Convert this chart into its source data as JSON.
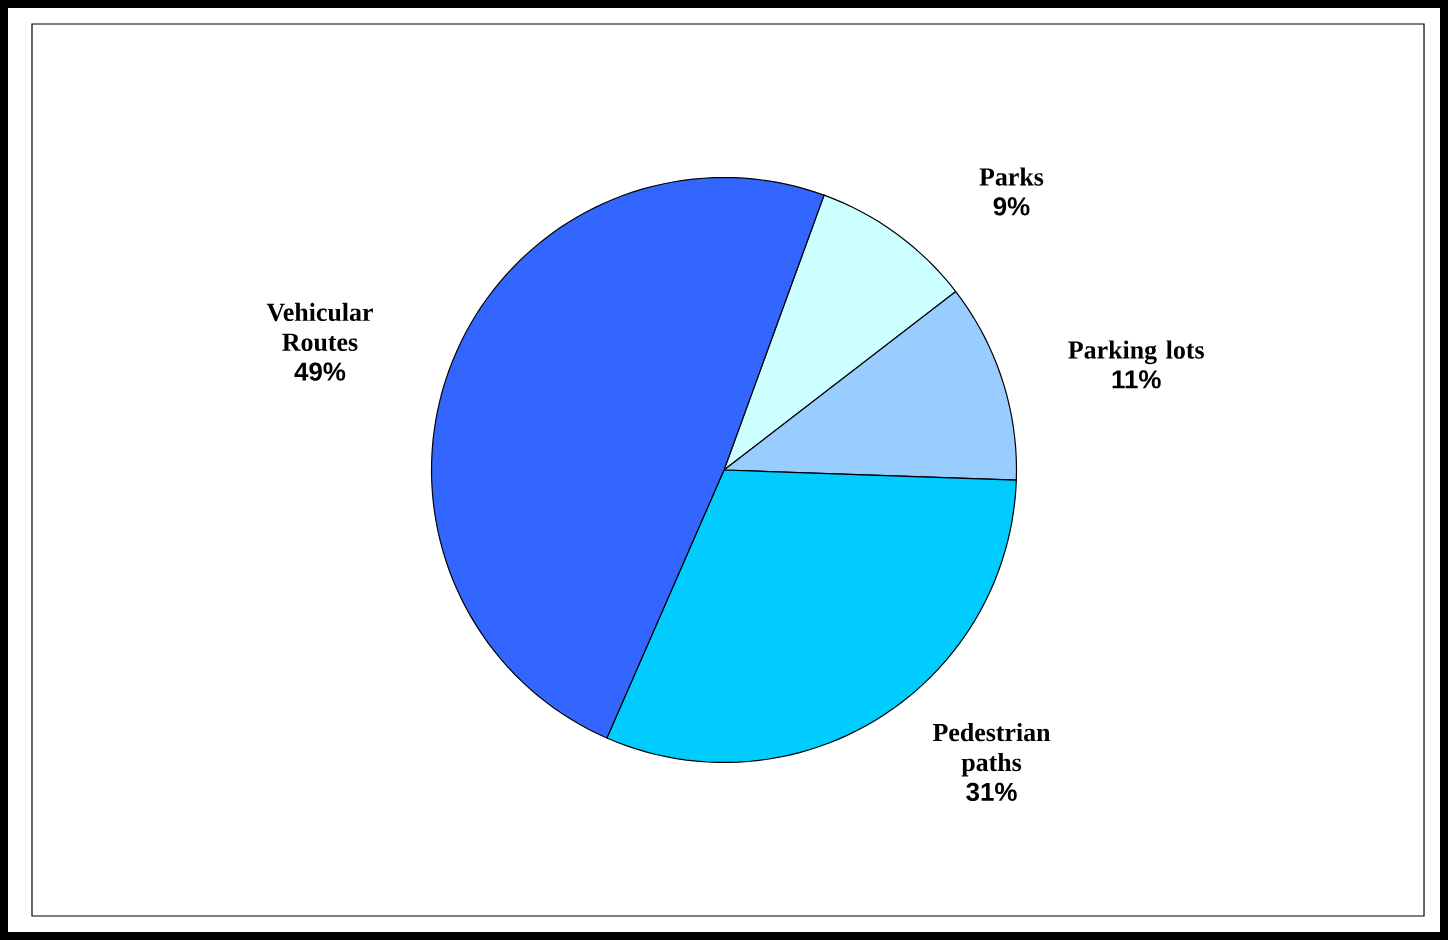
{
  "chart_data": {
    "type": "pie",
    "categories": [
      "Parks",
      "Parking lots",
      "Pedestrian paths",
      "Vehicular Routes"
    ],
    "values": [
      9,
      11,
      31,
      49
    ],
    "value_labels": [
      "9%",
      "11%",
      "31%",
      "49%"
    ],
    "colors": [
      "#ccffff",
      "#99ccff",
      "#00ccff",
      "#3366ff"
    ]
  }
}
